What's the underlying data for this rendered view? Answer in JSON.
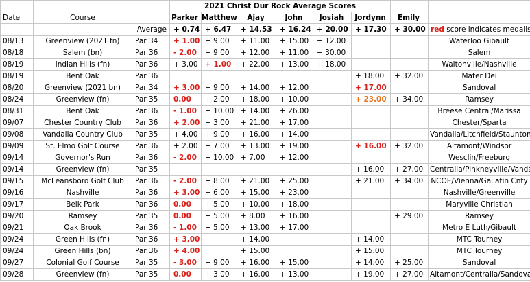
{
  "title": "2021 Christ Our Rock Average Scores",
  "headers": {
    "date": "Date",
    "course": "Course",
    "players": [
      "Parker",
      "Matthew",
      "Ajay",
      "John",
      "Josiah",
      "Jordynn",
      "Emily"
    ]
  },
  "averages": {
    "label": "Average",
    "values": [
      "+ 0.74",
      "+ 6.47",
      "+ 14.53",
      "+ 16.24",
      "+ 20.00",
      "+ 17.30",
      "+ 30.00"
    ],
    "note_red_word": "red",
    "note_rest": " score indicates medalist"
  },
  "colors": {
    "medalist": "#d9201a",
    "highlight": "#e8731a",
    "grid": "#c8c8c8"
  },
  "rows": [
    {
      "date": "08/13",
      "course": "Greenview (2021 fn)",
      "par": "Par 34",
      "scores": [
        {
          "v": "+ 1.00",
          "s": "red"
        },
        {
          "v": "+ 9.00"
        },
        {
          "v": "+ 11.00"
        },
        {
          "v": "+ 15.00"
        },
        {
          "v": "+ 12.00"
        },
        {
          "v": ""
        },
        {
          "v": ""
        }
      ],
      "opponent": "Waterloo Gibault"
    },
    {
      "date": "08/18",
      "course": "Salem (bn)",
      "par": "Par 36",
      "scores": [
        {
          "v": "- 2.00",
          "s": "red"
        },
        {
          "v": "+ 9.00"
        },
        {
          "v": "+ 12.00"
        },
        {
          "v": "+ 11.00"
        },
        {
          "v": "+ 30.00"
        },
        {
          "v": ""
        },
        {
          "v": ""
        }
      ],
      "opponent": "Salem"
    },
    {
      "date": "08/19",
      "course": "Indian Hills (fn)",
      "par": "Par 36",
      "scores": [
        {
          "v": "+ 3.00"
        },
        {
          "v": "+ 1.00",
          "s": "red"
        },
        {
          "v": "+ 22.00"
        },
        {
          "v": "+ 13.00"
        },
        {
          "v": "+ 18.00"
        },
        {
          "v": ""
        },
        {
          "v": ""
        }
      ],
      "opponent": "Waltonville/Nashville"
    },
    {
      "date": "08/19",
      "course": "Bent Oak",
      "par": "Par 36",
      "scores": [
        {
          "v": ""
        },
        {
          "v": ""
        },
        {
          "v": ""
        },
        {
          "v": ""
        },
        {
          "v": ""
        },
        {
          "v": "+ 18.00"
        },
        {
          "v": "+ 32.00"
        }
      ],
      "opponent": "Mater Dei"
    },
    {
      "date": "08/20",
      "course": "Greenview (2021 bn)",
      "par": "Par 34",
      "scores": [
        {
          "v": "+ 3.00",
          "s": "red"
        },
        {
          "v": "+ 9.00"
        },
        {
          "v": "+ 14.00"
        },
        {
          "v": "+ 12.00"
        },
        {
          "v": ""
        },
        {
          "v": "+ 17.00",
          "s": "red"
        },
        {
          "v": ""
        }
      ],
      "opponent": "Sandoval"
    },
    {
      "date": "08/24",
      "course": "Greenview (fn)",
      "par": "Par 35",
      "scores": [
        {
          "v": "0.00",
          "s": "red"
        },
        {
          "v": "+ 2.00"
        },
        {
          "v": "+ 18.00"
        },
        {
          "v": "+ 10.00"
        },
        {
          "v": ""
        },
        {
          "v": "+ 23.00",
          "s": "orange"
        },
        {
          "v": "+ 34.00"
        }
      ],
      "opponent": "Ramsey"
    },
    {
      "date": "08/31",
      "course": "Bent Oak",
      "par": "Par 36",
      "scores": [
        {
          "v": "- 1.00",
          "s": "red"
        },
        {
          "v": "+ 10.00"
        },
        {
          "v": "+ 14.00"
        },
        {
          "v": "+ 26.00"
        },
        {
          "v": ""
        },
        {
          "v": ""
        },
        {
          "v": ""
        }
      ],
      "opponent": "Breese Central/Marissa"
    },
    {
      "date": "09/07",
      "course": "Chester Country Club",
      "par": "Par 36",
      "scores": [
        {
          "v": "+ 2.00",
          "s": "red"
        },
        {
          "v": "+ 3.00"
        },
        {
          "v": "+ 21.00"
        },
        {
          "v": "+ 17.00"
        },
        {
          "v": ""
        },
        {
          "v": ""
        },
        {
          "v": ""
        }
      ],
      "opponent": "Chester/Sparta"
    },
    {
      "date": "09/08",
      "course": "Vandalia Country Club",
      "par": "Par 35",
      "scores": [
        {
          "v": "+ 4.00"
        },
        {
          "v": "+ 9.00"
        },
        {
          "v": "+ 16.00"
        },
        {
          "v": "+ 14.00"
        },
        {
          "v": ""
        },
        {
          "v": ""
        },
        {
          "v": ""
        }
      ],
      "opponent": "Vandalia/Litchfield/Staunton"
    },
    {
      "date": "09/09",
      "course": "St. Elmo Golf Course",
      "par": "Par 36",
      "scores": [
        {
          "v": "+ 2.00"
        },
        {
          "v": "+ 7.00"
        },
        {
          "v": "+ 13.00"
        },
        {
          "v": "+ 19.00"
        },
        {
          "v": ""
        },
        {
          "v": "+ 16.00",
          "s": "red"
        },
        {
          "v": "+ 32.00"
        }
      ],
      "opponent": "Altamont/Windsor"
    },
    {
      "date": "09/14",
      "course": "Governor's Run",
      "par": "Par 36",
      "scores": [
        {
          "v": "- 2.00",
          "s": "red"
        },
        {
          "v": "+ 10.00"
        },
        {
          "v": "+ 7.00"
        },
        {
          "v": "+ 12.00"
        },
        {
          "v": ""
        },
        {
          "v": ""
        },
        {
          "v": ""
        }
      ],
      "opponent": "Wesclin/Freeburg"
    },
    {
      "date": "09/14",
      "course": "Greenview (fn)",
      "par": "Par 35",
      "scores": [
        {
          "v": ""
        },
        {
          "v": ""
        },
        {
          "v": ""
        },
        {
          "v": ""
        },
        {
          "v": ""
        },
        {
          "v": "+ 16.00"
        },
        {
          "v": "+ 27.00"
        }
      ],
      "opponent": "Centralia/Pinkneyville/Vandalia"
    },
    {
      "date": "09/15",
      "course": "McLeansboro Golf Club",
      "par": "Par 36",
      "scores": [
        {
          "v": "- 2.00",
          "s": "red"
        },
        {
          "v": "+ 8.00"
        },
        {
          "v": "+ 21.00"
        },
        {
          "v": "+ 25.00"
        },
        {
          "v": ""
        },
        {
          "v": "+ 21.00"
        },
        {
          "v": "+ 34.00"
        }
      ],
      "opponent": "NCOE/Vienna/Gallatin Cnty"
    },
    {
      "date": "09/16",
      "course": "Nashville",
      "par": "Par 36",
      "scores": [
        {
          "v": "+ 3.00",
          "s": "red"
        },
        {
          "v": "+ 6.00"
        },
        {
          "v": "+ 15.00"
        },
        {
          "v": "+ 23.00"
        },
        {
          "v": ""
        },
        {
          "v": ""
        },
        {
          "v": ""
        }
      ],
      "opponent": "Nashville/Greenville"
    },
    {
      "date": "09/17",
      "course": "Belk Park",
      "par": "Par 36",
      "scores": [
        {
          "v": "0.00",
          "s": "red"
        },
        {
          "v": "+ 5.00"
        },
        {
          "v": "+ 10.00"
        },
        {
          "v": "+ 18.00"
        },
        {
          "v": ""
        },
        {
          "v": ""
        },
        {
          "v": ""
        }
      ],
      "opponent": "Maryville Christian"
    },
    {
      "date": "09/20",
      "course": "Ramsey",
      "par": "Par 35",
      "scores": [
        {
          "v": "0.00",
          "s": "red"
        },
        {
          "v": "+ 5.00"
        },
        {
          "v": "+ 8.00"
        },
        {
          "v": "+ 16.00"
        },
        {
          "v": ""
        },
        {
          "v": ""
        },
        {
          "v": "+ 29.00"
        }
      ],
      "opponent": "Ramsey"
    },
    {
      "date": "09/21",
      "course": "Oak Brook",
      "par": "Par 36",
      "scores": [
        {
          "v": "- 1.00",
          "s": "red"
        },
        {
          "v": "+ 5.00"
        },
        {
          "v": "+ 13.00"
        },
        {
          "v": "+ 17.00"
        },
        {
          "v": ""
        },
        {
          "v": ""
        },
        {
          "v": ""
        }
      ],
      "opponent": "Metro E Luth/Gibault"
    },
    {
      "date": "09/24",
      "course": "Green Hills (fn)",
      "par": "Par 36",
      "scores": [
        {
          "v": "+ 3.00",
          "s": "red"
        },
        {
          "v": ""
        },
        {
          "v": "+ 14.00"
        },
        {
          "v": ""
        },
        {
          "v": ""
        },
        {
          "v": "+ 14.00"
        },
        {
          "v": ""
        }
      ],
      "opponent": "MTC Tourney"
    },
    {
      "date": "09/24",
      "course": "Green Hills (bn)",
      "par": "Par 36",
      "scores": [
        {
          "v": "+ 4.00",
          "s": "red"
        },
        {
          "v": ""
        },
        {
          "v": "+ 15.00"
        },
        {
          "v": ""
        },
        {
          "v": ""
        },
        {
          "v": "+ 15.00"
        },
        {
          "v": ""
        }
      ],
      "opponent": "MTC Tourney"
    },
    {
      "date": "09/27",
      "course": "Colonial Golf Course",
      "par": "Par 35",
      "scores": [
        {
          "v": "- 3.00",
          "s": "red"
        },
        {
          "v": "+ 9.00"
        },
        {
          "v": "+ 16.00"
        },
        {
          "v": "+ 15.00"
        },
        {
          "v": ""
        },
        {
          "v": "+ 14.00"
        },
        {
          "v": "+ 25.00"
        }
      ],
      "opponent": "Sandoval"
    },
    {
      "date": "09/28",
      "course": "Greenview (fn)",
      "par": "Par 35",
      "scores": [
        {
          "v": "0.00",
          "s": "red"
        },
        {
          "v": "+ 3.00"
        },
        {
          "v": "+ 16.00"
        },
        {
          "v": "+ 13.00"
        },
        {
          "v": ""
        },
        {
          "v": "+ 19.00"
        },
        {
          "v": "+ 27.00"
        }
      ],
      "opponent": "Altamont/Centralia/Sandoval"
    }
  ]
}
